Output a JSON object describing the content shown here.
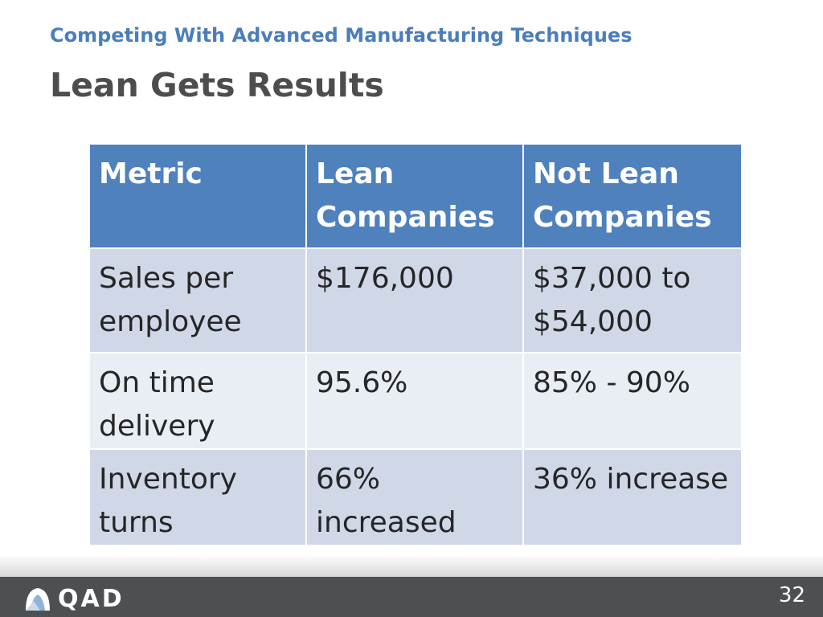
{
  "slide": {
    "subtitle": "Competing With Advanced Manufacturing Techniques",
    "title": "Lean Gets Results",
    "page_number": "32"
  },
  "table": {
    "headers": [
      "Metric",
      "Lean Companies",
      "Not Lean Companies"
    ],
    "rows": [
      [
        "Sales per employee",
        "$176,000",
        "$37,000 to $54,000"
      ],
      [
        "On time delivery",
        "95.6%",
        "85% - 90%"
      ],
      [
        "Inventory turns",
        "66% increased",
        "36% increase"
      ]
    ]
  },
  "footer": {
    "logo_text": "QAD",
    "logo_icon": "qad-logo-icon"
  },
  "colors": {
    "accent": "#4a7ebb",
    "header_fill": "#4f81bd",
    "row_dark": "#d0d8e8",
    "row_light": "#e9edf4",
    "footer_bar": "#4d5053"
  }
}
